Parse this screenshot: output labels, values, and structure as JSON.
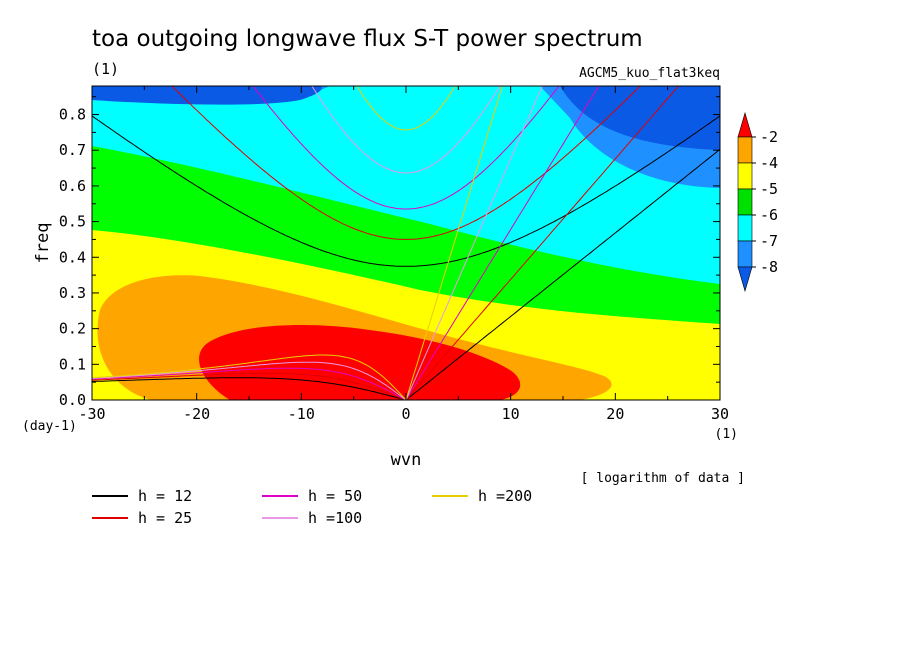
{
  "header": {
    "title": "toa outgoing longwave flux S-T power spectrum",
    "units_left": "(1)",
    "experiment": "AGCM5_kuo_flat3keq"
  },
  "chart_data": {
    "type": "contour",
    "xlabel": "wvn",
    "ylabel": "freq",
    "x_unit": "(1)",
    "y_unit": "(day-1)",
    "xlim": [
      -30,
      30
    ],
    "ylim": [
      0,
      0.88
    ],
    "x_ticks": [
      -30,
      -20,
      -10,
      0,
      10,
      20,
      30
    ],
    "x_tick_labels": [
      "-30",
      "-20",
      "-10",
      "0",
      "10",
      "20",
      "30"
    ],
    "y_ticks": [
      0,
      0.1,
      0.2,
      0.3,
      0.4,
      0.5,
      0.6,
      0.7,
      0.8
    ],
    "y_tick_labels": [
      "0.0",
      "0.1",
      "0.2",
      "0.3",
      "0.4",
      "0.5",
      "0.6",
      "0.7",
      "0.8"
    ],
    "note": "[ logarithm of data ]",
    "colorbar": {
      "levels": [
        -8,
        -7,
        -6,
        -5,
        -4,
        -2
      ],
      "labels": [
        "-2",
        "-4",
        "-5",
        "-6",
        "-7",
        "-8"
      ],
      "colors": [
        "#ff0000",
        "#ffa500",
        "#ffff00",
        "#00e000",
        "#00ffff",
        "#1e90ff",
        "#0a5ae6"
      ]
    },
    "dispersion_curves": [
      {
        "label": "h = 12",
        "h": 12,
        "color": "#000000"
      },
      {
        "label": "h = 25",
        "h": 25,
        "color": "#e00000"
      },
      {
        "label": "h = 50",
        "h": 50,
        "color": "#e000c8"
      },
      {
        "label": "h =100",
        "h": 100,
        "color": "#e89ae8"
      },
      {
        "label": "h =200",
        "h": 200,
        "color": "#e8d000"
      }
    ]
  }
}
